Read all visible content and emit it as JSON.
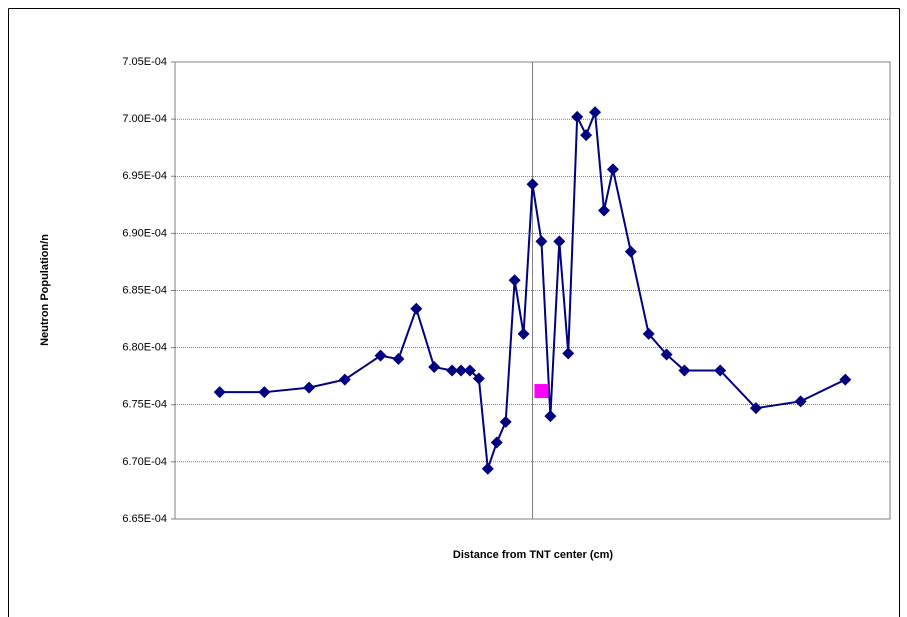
{
  "chart_data": {
    "type": "scatter",
    "x_label": "Distance from TNT center (cm)",
    "y_label": "Neutron Population/n",
    "xlim": [
      -20,
      20
    ],
    "ylim": [
      0.000665,
      0.000705
    ],
    "yticks": [
      {
        "value": 0.000665,
        "label": "6.65E-04"
      },
      {
        "value": 0.00067,
        "label": "6.70E-04"
      },
      {
        "value": 0.000675,
        "label": "6.75E-04"
      },
      {
        "value": 0.00068,
        "label": "6.80E-04"
      },
      {
        "value": 0.000685,
        "label": "6.85E-04"
      },
      {
        "value": 0.00069,
        "label": "6.90E-04"
      },
      {
        "value": 0.000695,
        "label": "6.95E-04"
      },
      {
        "value": 0.0007,
        "label": "7.00E-04"
      },
      {
        "value": 0.000705,
        "label": "7.05E-04"
      }
    ],
    "grid": true,
    "series": [
      {
        "color": "#000080",
        "marker": "diamond",
        "line": true,
        "x": [
          -17.5,
          -15,
          -12.5,
          -10.5,
          -8.5,
          -7.5,
          -6.5,
          -5.5,
          -4.5,
          -4,
          -3.5,
          -3,
          -2.5,
          -2,
          -1.5,
          -1,
          -0.5,
          0,
          0.5,
          1,
          1.5,
          2,
          2.5,
          3,
          3.5,
          4,
          4.5,
          5.5,
          6.5,
          7.5,
          8.5,
          10.5,
          12.5,
          15,
          17.5
        ],
        "values": [
          0.0006761,
          0.0006761,
          0.0006765,
          0.0006772,
          0.0006793,
          0.000679,
          0.0006834,
          0.0006783,
          0.000678,
          0.000678,
          0.000678,
          0.0006773,
          0.0006694,
          0.0006717,
          0.0006735,
          0.0006859,
          0.0006812,
          0.0006943,
          0.0006893,
          0.000674,
          0.0006893,
          0.0006795,
          0.0007002,
          0.0006986,
          0.0007006,
          0.000692,
          0.0006956,
          0.0006884,
          0.0006812,
          0.0006794,
          0.000678,
          0.000678,
          0.0006747,
          0.0006753,
          0.0006772
        ]
      },
      {
        "color": "#ff00ff",
        "marker": "square",
        "line": false,
        "x": [
          0.5
        ],
        "values": [
          0.0006762
        ]
      }
    ]
  }
}
